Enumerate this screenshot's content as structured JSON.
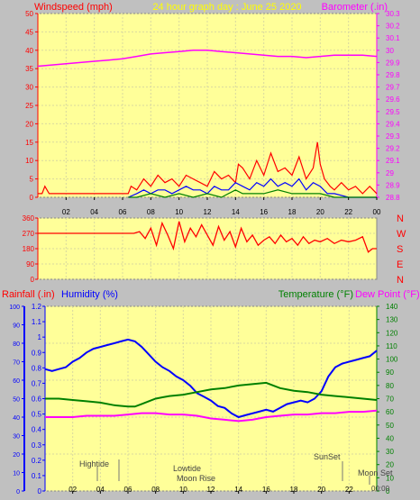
{
  "colors": {
    "background": "#c0c0c0",
    "plot_bg": "#ffff99",
    "grid": "#d9d9a0",
    "wind_title": "#ff0000",
    "baro_title": "#ff00ff",
    "main_title": "#ffff00",
    "rain_title": "#ff0000",
    "hum_title": "#0000ff",
    "temp_title": "#008000",
    "dew_title": "#ff00ff",
    "axis_wind": "#ff0000",
    "axis_baro": "#ff00ff",
    "axis_dir": "#ff0000",
    "axis_rain": "#0000ff",
    "axis_temp": "#008000",
    "time_axis": "#000000",
    "annotation": "#444444"
  },
  "header": {
    "wind_title": "Windspeed (mph)",
    "main_title": "24 hour graph day : June 25 2020",
    "baro_title": "Barometer (.in)"
  },
  "dir_labels": [
    "N",
    "W",
    "S",
    "E",
    "N"
  ],
  "lower_header": {
    "rain_title": "Rainfall (.in)",
    "hum_title": "Humidity (%)",
    "temp_title": "Temperature (°F)",
    "dew_title": "Dew Point (°F)"
  },
  "time_ticks": [
    "02",
    "04",
    "06",
    "08",
    "10",
    "12",
    "14",
    "16",
    "18",
    "20",
    "22",
    "00"
  ],
  "annotations": {
    "hightide": "Hightide",
    "lowtide": "Lowtide",
    "moonrise": "Moon Rise",
    "sunset": "SunSet",
    "moonset": "Moon Set",
    "moonset_time": "00:00"
  },
  "chart_data": [
    {
      "type": "line",
      "title": "24 hour graph day : June 25 2020",
      "x_unit": "hour",
      "xlim": [
        0,
        24
      ],
      "ylabel": "Windspeed (mph)",
      "ylim": [
        0,
        50
      ],
      "y_ticks": [
        0,
        5,
        10,
        15,
        20,
        25,
        30,
        35,
        40,
        45,
        50
      ],
      "y2label": "Barometer (.in)",
      "y2lim": [
        28.8,
        30.3
      ],
      "y2_ticks": [
        "28.8",
        "28.9",
        "29",
        "29.1",
        "29.2",
        "29.3",
        "29.4",
        "29.5",
        "29.6",
        "29.7",
        "29.8",
        "29.9",
        "30",
        "30.1",
        "30.2",
        "30.3"
      ],
      "series": [
        {
          "name": "Barometer",
          "axis": "y2",
          "color": "#ff00ff",
          "x": [
            0,
            1,
            2,
            3,
            4,
            5,
            6,
            7,
            8,
            9,
            10,
            11,
            12,
            13,
            14,
            15,
            16,
            17,
            18,
            19,
            20,
            21,
            22,
            23,
            24
          ],
          "y": [
            29.87,
            29.88,
            29.89,
            29.9,
            29.91,
            29.92,
            29.93,
            29.95,
            29.97,
            29.98,
            29.99,
            30.0,
            30.0,
            29.99,
            29.98,
            29.97,
            29.96,
            29.95,
            29.95,
            29.94,
            29.95,
            29.96,
            29.96,
            29.96,
            29.95
          ]
        },
        {
          "name": "Gust",
          "axis": "y",
          "color": "#ff0000",
          "x": [
            0,
            0.3,
            0.5,
            0.8,
            1,
            6.4,
            6.6,
            7,
            7.5,
            8,
            8.5,
            9,
            9.5,
            10,
            10.5,
            11,
            11.5,
            12,
            12.5,
            13,
            13.5,
            14,
            14.2,
            14.5,
            15,
            15.5,
            16,
            16.5,
            17,
            17.5,
            18,
            18.5,
            19,
            19.5,
            19.8,
            20,
            20.3,
            20.7,
            21,
            21.5,
            22,
            22.5,
            23,
            23.5,
            24
          ],
          "y": [
            1,
            1,
            3,
            1,
            1,
            1,
            3,
            2,
            5,
            3,
            6,
            4,
            5,
            3,
            6,
            5,
            4,
            3,
            7,
            5,
            6,
            4,
            9,
            8,
            5,
            10,
            6,
            12,
            7,
            8,
            6,
            11,
            5,
            8,
            15,
            9,
            5,
            3,
            2,
            4,
            2,
            3,
            1,
            3,
            1
          ]
        },
        {
          "name": "Average",
          "axis": "y",
          "color": "#0000ff",
          "x": [
            6.4,
            7,
            7.5,
            8,
            8.5,
            9,
            9.5,
            10,
            10.5,
            11,
            11.5,
            12,
            12.5,
            13,
            13.5,
            14,
            14.5,
            15,
            15.5,
            16,
            16.5,
            17,
            17.5,
            18,
            18.5,
            19,
            19.5,
            20,
            20.5,
            21,
            22,
            23,
            24
          ],
          "y": [
            0,
            1,
            2,
            1,
            2,
            2,
            1,
            2,
            3,
            2,
            2,
            1,
            3,
            2,
            2,
            4,
            3,
            2,
            4,
            3,
            5,
            3,
            4,
            3,
            5,
            2,
            4,
            3,
            1,
            1,
            0,
            0,
            0
          ]
        },
        {
          "name": "Lull",
          "axis": "y",
          "color": "#008000",
          "x": [
            6.4,
            7,
            8,
            9,
            10,
            11,
            12,
            13,
            14,
            14.5,
            15,
            16,
            17,
            18,
            19,
            20,
            21,
            22,
            24
          ],
          "y": [
            0,
            0,
            1,
            0,
            1,
            0,
            1,
            0,
            2,
            1,
            1,
            1,
            2,
            1,
            1,
            1,
            0,
            0,
            0
          ]
        }
      ]
    },
    {
      "type": "line",
      "xlim": [
        0,
        24
      ],
      "ylabel": "Wind direction",
      "ylim": [
        0,
        360
      ],
      "y_ticks": [
        0,
        90,
        180,
        270,
        360
      ],
      "series": [
        {
          "name": "Direction",
          "color": "#ff0000",
          "x": [
            0,
            6.8,
            7.2,
            7.6,
            8,
            8.4,
            8.8,
            9.2,
            9.6,
            10,
            10.4,
            10.8,
            11.2,
            11.6,
            12,
            12.4,
            12.8,
            13.2,
            13.6,
            14,
            14.4,
            14.8,
            15.2,
            15.6,
            16,
            16.4,
            16.8,
            17.2,
            17.6,
            18,
            18.4,
            18.8,
            19.2,
            19.6,
            20,
            20.5,
            21,
            21.5,
            22,
            22.5,
            23,
            23.4,
            23.7,
            24
          ],
          "y": [
            270,
            270,
            280,
            240,
            300,
            200,
            330,
            260,
            180,
            340,
            220,
            300,
            250,
            320,
            260,
            200,
            310,
            230,
            280,
            190,
            300,
            220,
            260,
            200,
            230,
            250,
            210,
            260,
            220,
            240,
            200,
            250,
            210,
            230,
            220,
            240,
            210,
            230,
            220,
            230,
            250,
            160,
            180,
            180
          ]
        }
      ]
    },
    {
      "type": "line",
      "xlim": [
        0,
        24
      ],
      "ylabel": "Humidity (%)",
      "ylim": [
        0,
        100
      ],
      "y_ticks": [
        0,
        10,
        20,
        30,
        40,
        50,
        60,
        70,
        80,
        90,
        100
      ],
      "y_rain_label": "Rainfall (.in)",
      "y_rain_lim": [
        0,
        1.2
      ],
      "y_rain_ticks": [
        "0",
        "0.1",
        "0.2",
        "0.3",
        "0.4",
        "0.5",
        "0.6",
        "0.7",
        "0.8",
        "0.9",
        "1",
        "1.1",
        "1.2"
      ],
      "y2label": "Temperature (°F)",
      "y2lim": [
        0,
        140
      ],
      "y2_ticks": [
        0,
        10,
        20,
        30,
        40,
        50,
        60,
        70,
        80,
        90,
        100,
        110,
        120,
        130,
        140
      ],
      "series": [
        {
          "name": "Humidity",
          "axis": "y",
          "color": "#0000ff",
          "x": [
            0,
            0.5,
            1,
            1.5,
            2,
            2.5,
            3,
            3.5,
            4,
            4.5,
            5,
            5.5,
            6,
            6.5,
            7,
            7.5,
            8,
            8.5,
            9,
            9.5,
            10,
            10.5,
            11,
            11.5,
            12,
            12.5,
            13,
            13.5,
            14,
            14.5,
            15,
            15.5,
            16,
            16.5,
            17,
            17.5,
            18,
            18.5,
            19,
            19.5,
            20,
            20.5,
            21,
            21.5,
            22,
            22.5,
            23,
            23.5,
            24
          ],
          "y": [
            66,
            65,
            66,
            67,
            70,
            72,
            75,
            77,
            78,
            79,
            80,
            81,
            82,
            81,
            78,
            74,
            70,
            67,
            65,
            62,
            60,
            57,
            53,
            51,
            49,
            46,
            45,
            42,
            40,
            41,
            42,
            43,
            44,
            43,
            45,
            47,
            48,
            49,
            48,
            50,
            54,
            62,
            67,
            69,
            70,
            71,
            72,
            73,
            76
          ]
        },
        {
          "name": "Temperature",
          "axis": "y2",
          "color": "#008000",
          "x": [
            0,
            1,
            2,
            3,
            4,
            5,
            6,
            6.5,
            7,
            7.5,
            8,
            8.5,
            9,
            10,
            11,
            12,
            13,
            14,
            15,
            16,
            17,
            18,
            19,
            20,
            21,
            22,
            23,
            24
          ],
          "y": [
            70,
            70,
            69,
            68,
            67,
            65,
            64,
            64,
            66,
            68,
            70,
            71,
            72,
            73,
            75,
            77,
            78,
            80,
            81,
            82,
            78,
            76,
            75,
            73,
            72,
            71,
            70,
            69
          ]
        },
        {
          "name": "Dew Point",
          "axis": "y2",
          "color": "#ff00ff",
          "x": [
            0,
            1,
            2,
            3,
            4,
            5,
            6,
            7,
            8,
            9,
            10,
            11,
            12,
            13,
            14,
            15,
            16,
            17,
            18,
            19,
            20,
            21,
            22,
            23,
            24
          ],
          "y": [
            56,
            56,
            56,
            57,
            57,
            57,
            58,
            59,
            59,
            58,
            58,
            57,
            55,
            54,
            53,
            54,
            56,
            57,
            58,
            58,
            59,
            59,
            60,
            60,
            61
          ]
        }
      ]
    }
  ]
}
